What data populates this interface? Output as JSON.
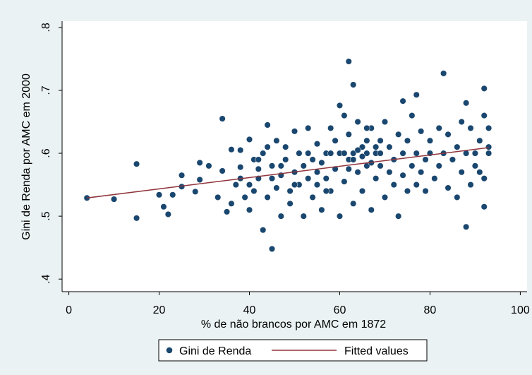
{
  "chart_data": {
    "type": "scatter",
    "x_label": "% de não brancos por AMC em 1872",
    "y_label": "Gini de Renda por AMC em 2000",
    "xlim": [
      -1.5,
      101.5
    ],
    "ylim": [
      0.38,
      0.81
    ],
    "xticks": [
      0,
      20,
      40,
      60,
      80,
      100
    ],
    "yticks": [
      {
        "value": 0.4,
        "label": ".4"
      },
      {
        "value": 0.5,
        "label": ".5"
      },
      {
        "value": 0.6,
        "label": ".6"
      },
      {
        "value": 0.7,
        "label": ".7"
      },
      {
        "value": 0.8,
        "label": ".8"
      }
    ],
    "legend": "bottom",
    "series": [
      {
        "name": "Gini de Renda",
        "type": "scatter",
        "color": "#1a476f",
        "x": [
          4,
          10,
          15,
          15,
          20,
          21,
          22,
          23,
          25,
          25,
          28,
          29,
          29,
          31,
          33,
          34,
          34,
          35,
          36,
          38,
          38,
          39,
          40,
          41,
          42,
          43,
          44,
          45,
          62,
          63,
          83,
          88,
          92,
          88,
          92,
          77,
          60,
          74,
          36,
          37,
          40,
          41,
          42,
          43,
          44,
          45,
          46,
          46,
          47,
          47,
          48,
          48,
          49,
          49,
          50,
          50,
          51,
          51,
          52,
          52,
          53,
          53,
          54,
          54,
          55,
          55,
          56,
          56,
          57,
          57,
          58,
          58,
          59,
          59,
          60,
          60,
          61,
          61,
          62,
          62,
          63,
          63,
          64,
          64,
          65,
          65,
          66,
          66,
          67,
          67,
          68,
          68,
          69,
          69,
          70,
          70,
          71,
          71,
          72,
          72,
          73,
          73,
          74,
          74,
          75,
          75,
          76,
          76,
          77,
          77,
          78,
          78,
          79,
          79,
          80,
          80,
          81,
          82,
          82,
          83,
          84,
          84,
          85,
          86,
          86,
          87,
          87,
          88,
          89,
          89,
          90,
          90,
          91,
          91,
          92,
          92,
          93,
          93,
          93,
          58,
          64,
          66,
          68,
          63,
          65,
          67,
          69,
          61,
          62,
          66,
          57,
          55,
          53,
          50,
          47,
          45,
          42,
          40,
          38,
          44
        ],
        "values": [
          0.529,
          0.527,
          0.583,
          0.497,
          0.534,
          0.515,
          0.503,
          0.534,
          0.547,
          0.565,
          0.539,
          0.585,
          0.558,
          0.58,
          0.53,
          0.655,
          0.572,
          0.507,
          0.606,
          0.605,
          0.578,
          0.53,
          0.622,
          0.54,
          0.56,
          0.478,
          0.645,
          0.448,
          0.746,
          0.709,
          0.727,
          0.68,
          0.703,
          0.483,
          0.515,
          0.693,
          0.676,
          0.683,
          0.52,
          0.55,
          0.51,
          0.59,
          0.575,
          0.6,
          0.53,
          0.58,
          0.62,
          0.545,
          0.5,
          0.565,
          0.61,
          0.59,
          0.54,
          0.52,
          0.635,
          0.57,
          0.6,
          0.55,
          0.5,
          0.58,
          0.64,
          0.56,
          0.59,
          0.53,
          0.615,
          0.55,
          0.51,
          0.585,
          0.6,
          0.56,
          0.64,
          0.54,
          0.62,
          0.575,
          0.5,
          0.6,
          0.66,
          0.555,
          0.63,
          0.59,
          0.52,
          0.6,
          0.65,
          0.57,
          0.61,
          0.54,
          0.62,
          0.58,
          0.64,
          0.51,
          0.6,
          0.56,
          0.62,
          0.58,
          0.65,
          0.53,
          0.61,
          0.57,
          0.59,
          0.55,
          0.63,
          0.5,
          0.6,
          0.565,
          0.62,
          0.54,
          0.66,
          0.58,
          0.6,
          0.55,
          0.635,
          0.57,
          0.59,
          0.54,
          0.62,
          0.6,
          0.56,
          0.64,
          0.58,
          0.6,
          0.63,
          0.545,
          0.59,
          0.61,
          0.53,
          0.65,
          0.57,
          0.6,
          0.64,
          0.55,
          0.6,
          0.58,
          0.62,
          0.57,
          0.66,
          0.56,
          0.64,
          0.61,
          0.6,
          0.6,
          0.605,
          0.6,
          0.61,
          0.59,
          0.595,
          0.585,
          0.6,
          0.6,
          0.575,
          0.64,
          0.54,
          0.57,
          0.6,
          0.55,
          0.58,
          0.56,
          0.59,
          0.55,
          0.56,
          0.61
        ]
      },
      {
        "name": "Fitted values",
        "type": "line",
        "color": "#90353b",
        "x": [
          4,
          93
        ],
        "values": [
          0.529,
          0.609
        ]
      }
    ]
  }
}
